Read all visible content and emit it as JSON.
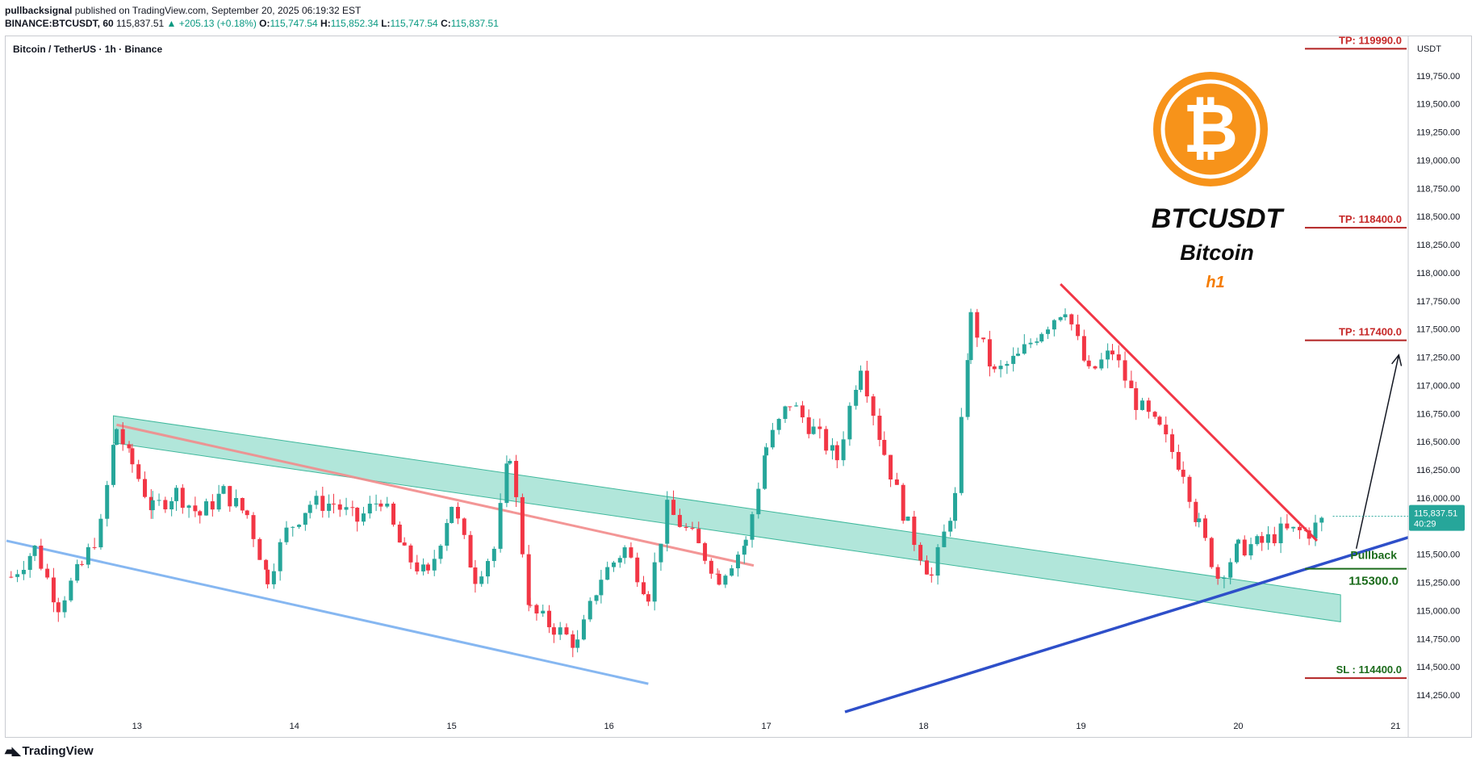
{
  "header": {
    "publisher": "pullbacksignal",
    "published_text": "published on TradingView.com, September 20, 2025 06:19:32 EST",
    "symbol": "BINANCE:BTCUSDT, 60",
    "last": "115,837.51",
    "change": "▲ +205.13 (+0.18%)",
    "o_label": "O:",
    "o": "115,747.54",
    "h_label": "H:",
    "h": "115,852.34",
    "l_label": "L:",
    "l": "115,747.54",
    "c_label": "C:",
    "c": "115,837.51"
  },
  "chart_title": "Bitcoin / TetherUS · 1h · Binance",
  "watermark": {
    "ticker": "BTCUSDT",
    "name": "Bitcoin",
    "timeframe": "h1",
    "logo_icon": "bitcoin-logo-icon",
    "logo_color": "#F7931A"
  },
  "footer": {
    "brand": "TradingView",
    "brand_icon": "tradingview-logo-icon"
  },
  "colors": {
    "up": "#26A69A",
    "down": "#F23645",
    "channel_fill": "#A8E3D6",
    "support": "#2E4FC9",
    "resistance": "#F23645",
    "tp_line": "#B22222",
    "pullback": "#1B6B1B"
  },
  "chart_data": {
    "type": "candlestick",
    "currency": "USDT",
    "last_price_label": "115,837.51",
    "countdown": "40:29",
    "ylim": [
      114100,
      120100
    ],
    "y_ticks": [
      114250,
      114500,
      114750,
      115000,
      115250,
      115500,
      115750,
      116000,
      116250,
      116500,
      116750,
      117000,
      117250,
      117500,
      117750,
      118000,
      118250,
      118500,
      118750,
      119000,
      119250,
      119500,
      119750
    ],
    "y_tick_labels": [
      "114,250.00",
      "114,500.00",
      "114,750.00",
      "115,000.00",
      "115,250.00",
      "115,500.00",
      "115,750.00",
      "116,000.00",
      "116,250.00",
      "116,500.00",
      "116,750.00",
      "117,000.00",
      "117,250.00",
      "117,500.00",
      "117,750.00",
      "118,000.00",
      "118,250.00",
      "118,500.00",
      "118,750.00",
      "119,000.00",
      "119,250.00",
      "119,500.00",
      "119,750.00"
    ],
    "x_ticks": [
      {
        "day": 12.85,
        "label": "13"
      },
      {
        "day": 13.85,
        "label": "14"
      },
      {
        "day": 14.85,
        "label": "15"
      },
      {
        "day": 15.85,
        "label": "16"
      },
      {
        "day": 16.85,
        "label": "17"
      },
      {
        "day": 17.85,
        "label": "18"
      },
      {
        "day": 18.85,
        "label": "19"
      },
      {
        "day": 19.85,
        "label": "20"
      },
      {
        "day": 20.85,
        "label": "21"
      }
    ],
    "xlim": [
      12.01,
      20.93
    ],
    "series": [
      {
        "day": 12.05,
        "close": 115300
      },
      {
        "day": 12.2,
        "close": 115550
      },
      {
        "day": 12.35,
        "close": 115050
      },
      {
        "day": 12.5,
        "close": 115400
      },
      {
        "day": 12.62,
        "close": 115750
      },
      {
        "day": 12.72,
        "close": 116620
      },
      {
        "day": 12.82,
        "close": 116300
      },
      {
        "day": 12.95,
        "close": 115900
      },
      {
        "day": 13.1,
        "close": 116050
      },
      {
        "day": 13.25,
        "close": 115850
      },
      {
        "day": 13.4,
        "close": 116050
      },
      {
        "day": 13.55,
        "close": 115850
      },
      {
        "day": 13.68,
        "close": 115300
      },
      {
        "day": 13.8,
        "close": 115700
      },
      {
        "day": 13.95,
        "close": 115950
      },
      {
        "day": 14.1,
        "close": 115950
      },
      {
        "day": 14.25,
        "close": 115800
      },
      {
        "day": 14.4,
        "close": 116000
      },
      {
        "day": 14.55,
        "close": 115500
      },
      {
        "day": 14.7,
        "close": 115300
      },
      {
        "day": 14.85,
        "close": 115950
      },
      {
        "day": 15.0,
        "close": 115300
      },
      {
        "day": 15.12,
        "close": 115550
      },
      {
        "day": 15.22,
        "close": 116400
      },
      {
        "day": 15.35,
        "close": 115000
      },
      {
        "day": 15.5,
        "close": 114850
      },
      {
        "day": 15.65,
        "close": 114700
      },
      {
        "day": 15.8,
        "close": 115300
      },
      {
        "day": 15.95,
        "close": 115550
      },
      {
        "day": 16.1,
        "close": 115150
      },
      {
        "day": 16.22,
        "close": 115900
      },
      {
        "day": 16.38,
        "close": 115650
      },
      {
        "day": 16.55,
        "close": 115300
      },
      {
        "day": 16.72,
        "close": 115600
      },
      {
        "day": 16.85,
        "close": 116450
      },
      {
        "day": 17.0,
        "close": 116850
      },
      {
        "day": 17.15,
        "close": 116600
      },
      {
        "day": 17.3,
        "close": 116350
      },
      {
        "day": 17.45,
        "close": 117200
      },
      {
        "day": 17.6,
        "close": 116400
      },
      {
        "day": 17.75,
        "close": 115750
      },
      {
        "day": 17.9,
        "close": 115300
      },
      {
        "day": 18.05,
        "close": 116000
      },
      {
        "day": 18.15,
        "close": 117600
      },
      {
        "day": 18.3,
        "close": 117100
      },
      {
        "day": 18.45,
        "close": 117250
      },
      {
        "day": 18.6,
        "close": 117500
      },
      {
        "day": 18.75,
        "close": 117700
      },
      {
        "day": 18.9,
        "close": 117100
      },
      {
        "day": 19.05,
        "close": 117300
      },
      {
        "day": 19.2,
        "close": 116850
      },
      {
        "day": 19.35,
        "close": 116600
      },
      {
        "day": 19.5,
        "close": 116250
      },
      {
        "day": 19.6,
        "close": 115750
      },
      {
        "day": 19.72,
        "close": 115300
      },
      {
        "day": 19.85,
        "close": 115550
      },
      {
        "day": 20.0,
        "close": 115600
      },
      {
        "day": 20.12,
        "close": 115700
      },
      {
        "day": 20.3,
        "close": 115700
      },
      {
        "day": 20.42,
        "close": 115837.51
      }
    ],
    "levels": [
      {
        "label": "TP: 119990.0",
        "price": 119990
      },
      {
        "label": "TP: 118400.0",
        "price": 118400
      },
      {
        "label": "TP: 117400.0",
        "price": 117400
      },
      {
        "label": "SL : 114400.0",
        "price": 114400
      }
    ],
    "pullback": {
      "label": "Pullback",
      "price_label": "115300.0",
      "price": 115300
    },
    "annotations": {
      "channel": [
        {
          "day": 12.7,
          "price": 116730
        },
        {
          "day": 20.5,
          "price": 115140
        },
        {
          "day": 20.5,
          "price": 114900
        },
        {
          "day": 12.7,
          "price": 116490
        }
      ],
      "red_line_left": [
        {
          "day": 12.72,
          "price": 116650
        },
        {
          "day": 16.77,
          "price": 115400
        }
      ],
      "blue_line_left": [
        {
          "day": 12.02,
          "price": 115620
        },
        {
          "day": 16.1,
          "price": 114350
        }
      ],
      "descending_line": [
        {
          "day": 18.72,
          "price": 117900
        },
        {
          "day": 20.35,
          "price": 115620
        }
      ],
      "ascending_line": [
        {
          "day": 17.35,
          "price": 114100
        },
        {
          "day": 20.93,
          "price": 115650
        }
      ],
      "arrow": [
        {
          "day": 20.6,
          "price": 115550
        },
        {
          "day": 20.87,
          "price": 117270
        }
      ]
    }
  }
}
